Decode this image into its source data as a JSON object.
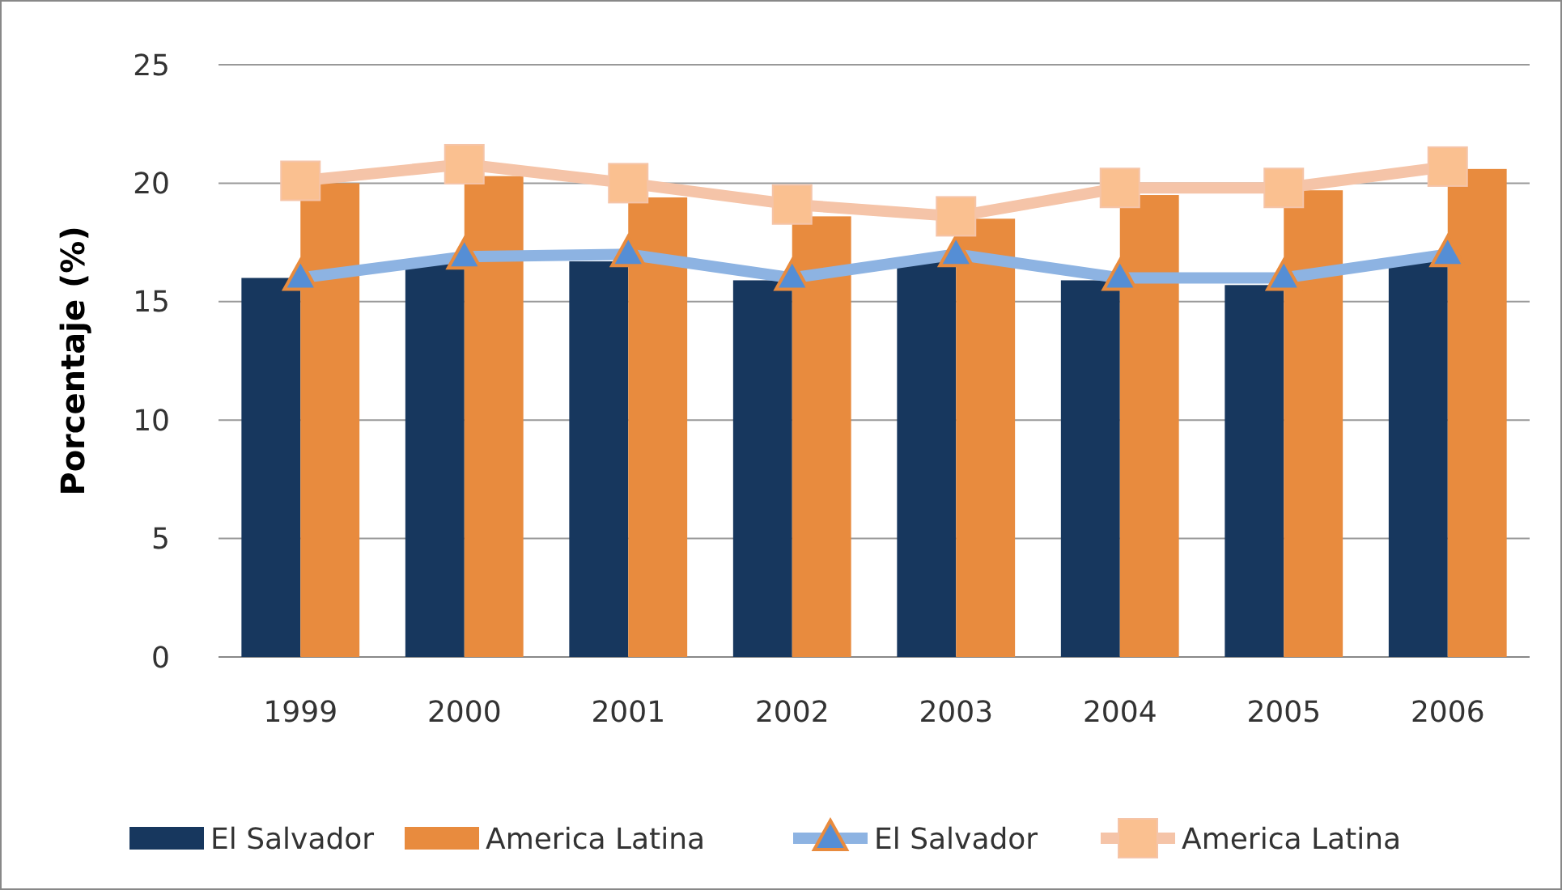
{
  "chart_data": {
    "type": "bar",
    "ylabel": "Porcentaje (%)",
    "categories": [
      "1999",
      "2000",
      "2001",
      "2002",
      "2003",
      "2004",
      "2005",
      "2006"
    ],
    "series": [
      {
        "name": "El Salvador",
        "color": "#17375e",
        "values": [
          16.0,
          16.7,
          16.7,
          15.9,
          16.8,
          15.9,
          15.7,
          16.8
        ]
      },
      {
        "name": "America Latina",
        "color": "#e88b3e",
        "values": [
          20.0,
          20.3,
          19.4,
          18.6,
          18.5,
          19.5,
          19.7,
          20.6
        ]
      },
      {
        "name": "El Salvador",
        "type": "line",
        "color": "#8db3e2",
        "marker": "triangle",
        "values": [
          16.0,
          16.9,
          17.0,
          16.0,
          17.0,
          16.0,
          16.0,
          17.0
        ]
      },
      {
        "name": "America Latina",
        "type": "line",
        "color": "#f5c4a8",
        "marker": "square",
        "values": [
          20.1,
          20.8,
          20.0,
          19.1,
          18.6,
          19.8,
          19.8,
          20.7
        ]
      }
    ],
    "ylim": [
      0,
      25
    ],
    "yticks": [
      0,
      5,
      10,
      15,
      20,
      25
    ],
    "grid": "y",
    "legend": "bottom"
  }
}
